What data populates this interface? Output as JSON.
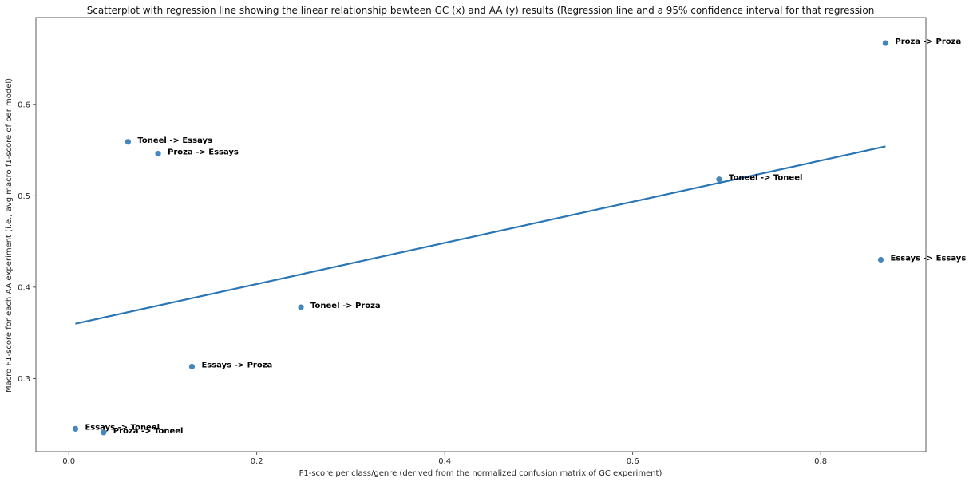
{
  "chart_data": {
    "type": "scatter",
    "title": "Scatterplot with regression line showing the linear relationship bewteen GC (x) and AA (y) results (Regression line and a 95% confidence interval for that regression",
    "xlabel": "F1-score per class/genre (derived from the normalized confusion matrix of GC experiment)",
    "ylabel": "Macro F1-score for each AA experiment (i.e., avg macro f1-score of per model)",
    "xlim": [
      -0.035,
      0.912
    ],
    "ylim": [
      0.22,
      0.695
    ],
    "x_ticks": [
      0.0,
      0.2,
      0.4,
      0.6,
      0.8
    ],
    "x_tick_labels": [
      "0.0",
      "0.2",
      "0.4",
      "0.6",
      "0.8"
    ],
    "y_ticks": [
      0.3,
      0.4,
      0.5,
      0.6
    ],
    "y_tick_labels": [
      "0.3",
      "0.4",
      "0.5",
      "0.6"
    ],
    "grid": false,
    "point_color": "#3a7fb9",
    "line_color": "#2a76b4",
    "points": [
      {
        "label": "Proza -> Proza",
        "x": 0.869,
        "y": 0.667
      },
      {
        "label": "Toneel -> Essays",
        "x": 0.063,
        "y": 0.559
      },
      {
        "label": "Proza -> Essays",
        "x": 0.095,
        "y": 0.546
      },
      {
        "label": "Toneel -> Toneel",
        "x": 0.692,
        "y": 0.518
      },
      {
        "label": "Essays -> Essays",
        "x": 0.864,
        "y": 0.43
      },
      {
        "label": "Toneel -> Proza",
        "x": 0.247,
        "y": 0.378
      },
      {
        "label": "Essays -> Proza",
        "x": 0.131,
        "y": 0.313
      },
      {
        "label": "Essays -> Toneel",
        "x": 0.007,
        "y": 0.245
      },
      {
        "label": "Proza -> Toneel",
        "x": 0.037,
        "y": 0.241
      }
    ],
    "regression": {
      "x": [
        0.007,
        0.869
      ],
      "y": [
        0.36,
        0.554
      ]
    }
  }
}
